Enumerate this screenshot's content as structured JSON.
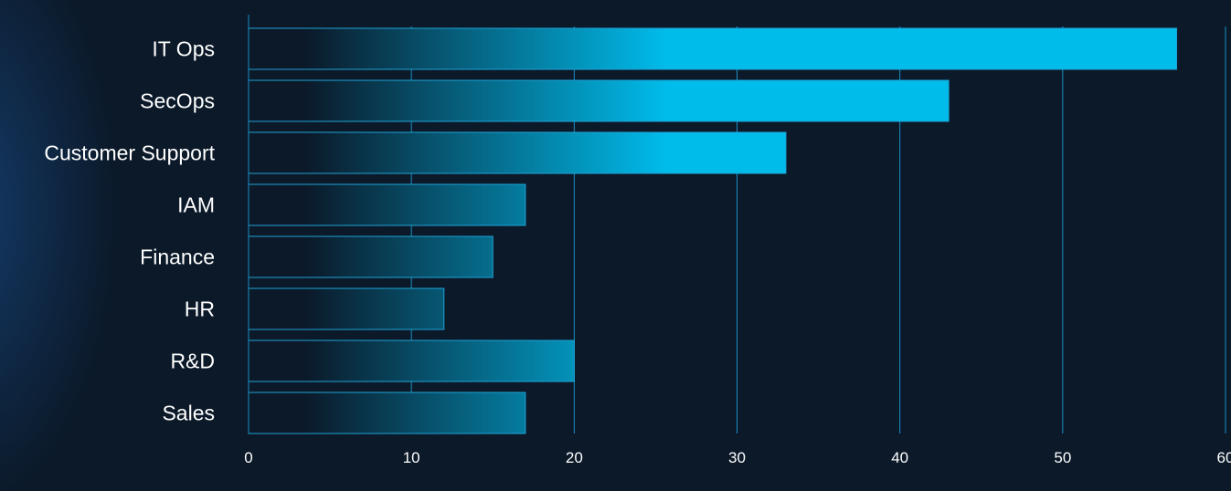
{
  "chart_data": {
    "type": "bar",
    "orientation": "horizontal",
    "categories": [
      "IT Ops",
      "SecOps",
      "Customer Support",
      "IAM",
      "Finance",
      "HR",
      "R&D",
      "Sales"
    ],
    "values": [
      57,
      43,
      33,
      17,
      15,
      12,
      20,
      17
    ],
    "xlim": [
      0,
      60
    ],
    "xticks": [
      0,
      10,
      20,
      30,
      40,
      50,
      60
    ],
    "title": "",
    "xlabel": "",
    "ylabel": "",
    "grid": "vertical",
    "legend": "none",
    "colors": {
      "background": "#0b1929",
      "bar_start": "#0b1929",
      "bar_end": "#00bceb",
      "bar_outline": "#1fa3d6",
      "grid": "#1b8fc4",
      "text": "#ffffff"
    }
  }
}
